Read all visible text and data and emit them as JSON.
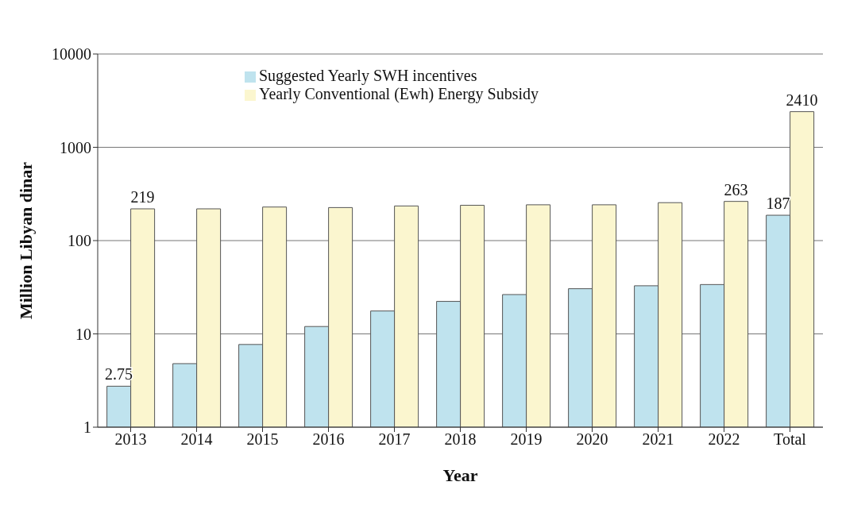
{
  "chart_data": {
    "type": "bar",
    "xlabel": "Year",
    "ylabel": "Million Libyan dinar",
    "categories": [
      "2013",
      "2014",
      "2015",
      "2016",
      "2017",
      "2018",
      "2019",
      "2020",
      "2021",
      "2022",
      "Total"
    ],
    "series": [
      {
        "name": "Suggested Yearly SWH incentives",
        "color": "#bfe3ee",
        "values": [
          2.75,
          4.8,
          7.7,
          12,
          17.6,
          22.3,
          26.4,
          30.5,
          32.8,
          33.8,
          187
        ],
        "value_labels": [
          "2.75",
          null,
          null,
          null,
          null,
          null,
          null,
          null,
          null,
          null,
          "187"
        ]
      },
      {
        "name": "Yearly Conventional (Ewh) Energy Subsidy",
        "color": "#fbf6cf",
        "values": [
          219,
          219,
          229,
          226,
          235,
          239,
          242,
          242,
          255,
          263,
          2410
        ],
        "value_labels": [
          "219",
          null,
          null,
          null,
          null,
          null,
          null,
          null,
          null,
          "263",
          "2410"
        ]
      }
    ],
    "log": "y",
    "ylim": [
      1,
      10000
    ],
    "yticks": [
      1,
      10,
      100,
      1000,
      10000
    ],
    "grid": "y",
    "legend": "top"
  }
}
